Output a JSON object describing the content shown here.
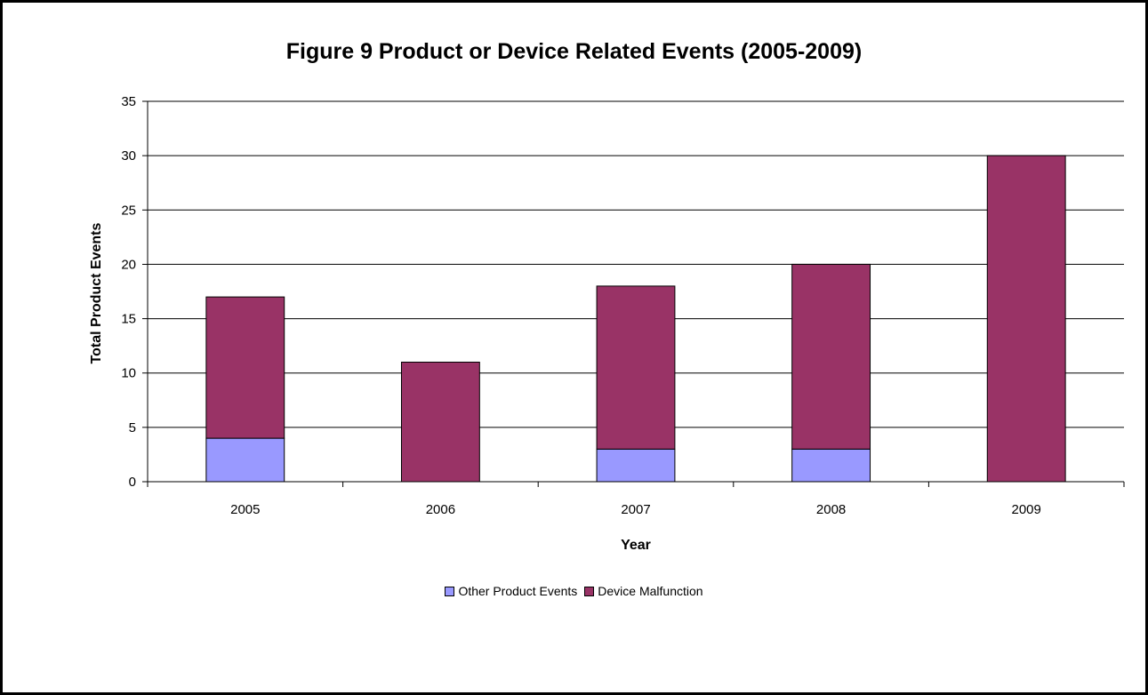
{
  "chart_data": {
    "type": "bar",
    "stacked": true,
    "title": "Figure 9 Product or Device Related Events (2005-2009)",
    "xlabel": "Year",
    "ylabel": "Total Product Events",
    "categories": [
      "2005",
      "2006",
      "2007",
      "2008",
      "2009"
    ],
    "ylim": [
      0,
      35
    ],
    "yticks": [
      0,
      5,
      10,
      15,
      20,
      25,
      30,
      35
    ],
    "grid": true,
    "legend_position": "bottom",
    "series": [
      {
        "name": "Other Product Events",
        "values": [
          4,
          0,
          3,
          3,
          0
        ],
        "color": "#9999ff"
      },
      {
        "name": "Device Malfunction",
        "values": [
          13,
          11,
          15,
          17,
          30
        ],
        "color": "#993366"
      }
    ]
  }
}
